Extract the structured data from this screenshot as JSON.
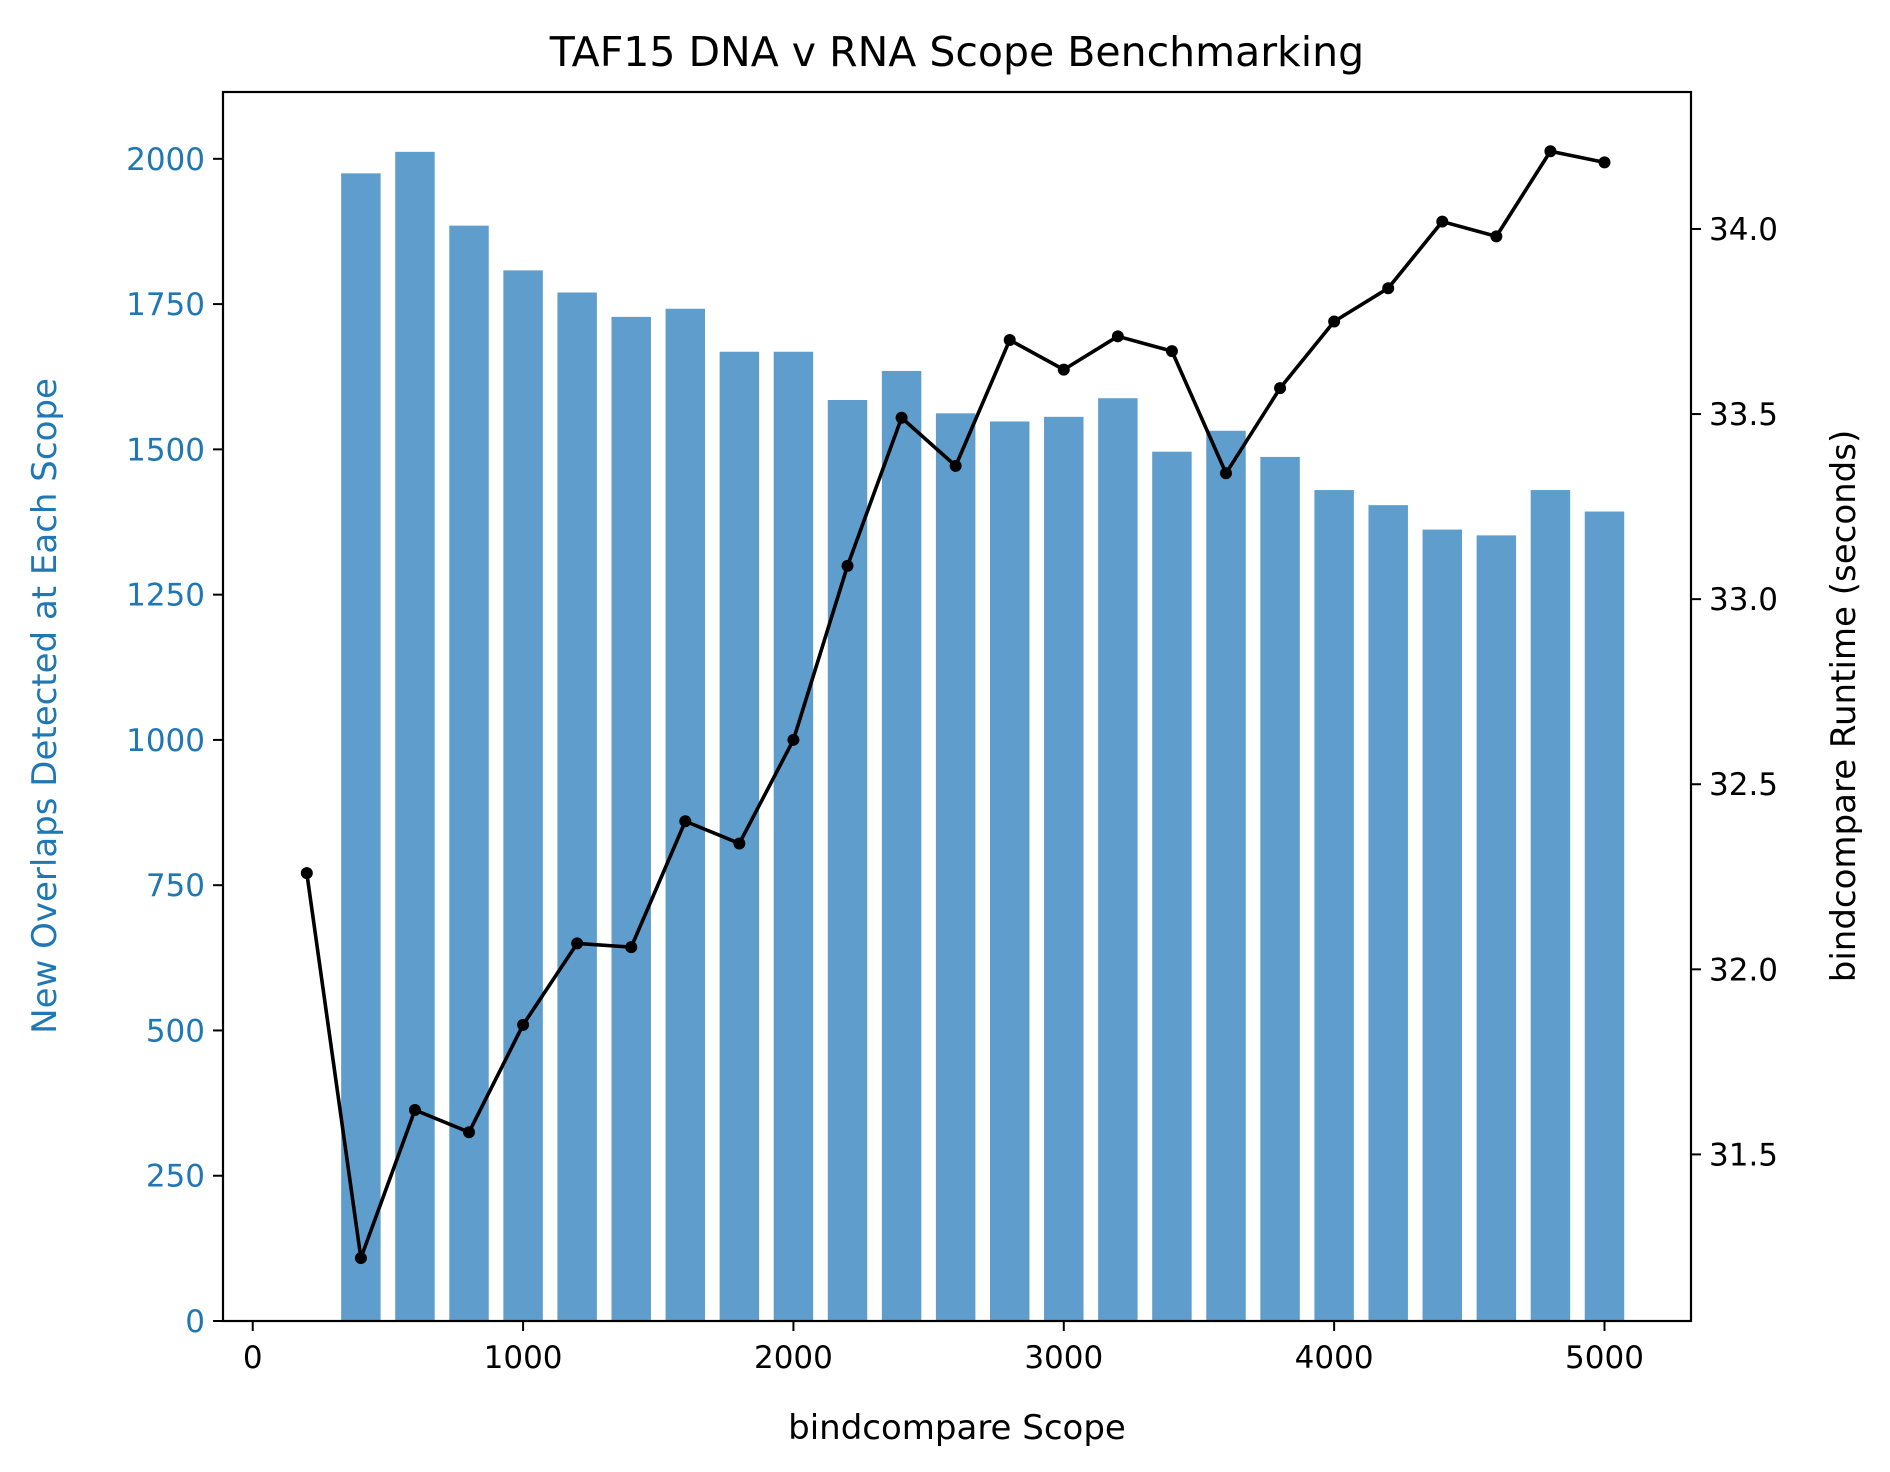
{
  "chart_data": {
    "type": "bar",
    "title": "TAF15 DNA v RNA Scope Benchmarking",
    "xlabel": "bindcompare Scope",
    "ylabel_left": "New Overlaps Detected at Each Scope",
    "ylabel_right": "bindcompare Runtime (seconds)",
    "xlim": [
      -110,
      5320
    ],
    "ylim_left": [
      0,
      2115
    ],
    "ylim_right": [
      31.05,
      34.37
    ],
    "xticks": [
      0,
      1000,
      2000,
      3000,
      4000,
      5000
    ],
    "yticks_left": [
      0,
      250,
      500,
      750,
      1000,
      1250,
      1500,
      1750,
      2000
    ],
    "yticks_right": [
      31.5,
      32.0,
      32.5,
      33.0,
      33.5,
      34.0
    ],
    "right_tick_labels": [
      "31.5",
      "32.0",
      "32.5",
      "33.0",
      "33.5",
      "34.0"
    ],
    "grid": false,
    "colors": {
      "bars": "#5f9ecc",
      "left_axis": "#1f77b4",
      "line": "#000000"
    },
    "series": [
      {
        "type": "bar",
        "axis": "left",
        "x": [
          400,
          600,
          800,
          1000,
          1200,
          1400,
          1600,
          1800,
          2000,
          2200,
          2400,
          2600,
          2800,
          3000,
          3200,
          3400,
          3600,
          3800,
          4000,
          4200,
          4400,
          4600,
          4800,
          5000
        ],
        "values": [
          1975,
          2012,
          1885,
          1808,
          1770,
          1728,
          1742,
          1668,
          1668,
          1585,
          1635,
          1562,
          1548,
          1556,
          1588,
          1496,
          1532,
          1487,
          1430,
          1404,
          1362,
          1352,
          1430,
          1393
        ]
      },
      {
        "type": "line",
        "axis": "right",
        "x": [
          200,
          400,
          600,
          800,
          1000,
          1200,
          1400,
          1600,
          1800,
          2000,
          2200,
          2400,
          2600,
          2800,
          3000,
          3200,
          3400,
          3600,
          3800,
          4000,
          4200,
          4400,
          4600,
          4800,
          5000
        ],
        "values": [
          32.26,
          31.22,
          31.62,
          31.56,
          31.85,
          32.07,
          32.06,
          32.4,
          32.34,
          32.62,
          33.09,
          33.49,
          33.36,
          33.7,
          33.62,
          33.71,
          33.67,
          33.34,
          33.57,
          33.75,
          33.84,
          34.02,
          33.98,
          34.21,
          34.18
        ]
      }
    ]
  }
}
